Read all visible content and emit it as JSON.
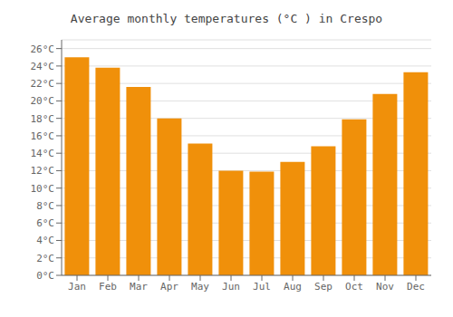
{
  "chart_data": {
    "type": "bar",
    "title": "Average monthly temperatures (°C ) in Crespo",
    "categories": [
      "Jan",
      "Feb",
      "Mar",
      "Apr",
      "May",
      "Jun",
      "Jul",
      "Aug",
      "Sep",
      "Oct",
      "Nov",
      "Dec"
    ],
    "values": [
      25.0,
      23.8,
      21.6,
      18.0,
      15.1,
      12.0,
      11.9,
      13.0,
      14.8,
      17.9,
      20.8,
      23.3
    ],
    "color": "#F0900A",
    "ylim": [
      0,
      27
    ],
    "yticks": [
      {
        "value": 0,
        "label": "0°C"
      },
      {
        "value": 2,
        "label": "2°C"
      },
      {
        "value": 4,
        "label": "4°C"
      },
      {
        "value": 6,
        "label": "6°C"
      },
      {
        "value": 8,
        "label": "8°C"
      },
      {
        "value": 10,
        "label": "10°C"
      },
      {
        "value": 12,
        "label": "12°C"
      },
      {
        "value": 14,
        "label": "14°C"
      },
      {
        "value": 16,
        "label": "16°C"
      },
      {
        "value": 18,
        "label": "18°C"
      },
      {
        "value": 20,
        "label": "20°C"
      },
      {
        "value": 22,
        "label": "22°C"
      },
      {
        "value": 24,
        "label": "24°C"
      },
      {
        "value": 26,
        "label": "26°C"
      }
    ],
    "grid": true
  }
}
